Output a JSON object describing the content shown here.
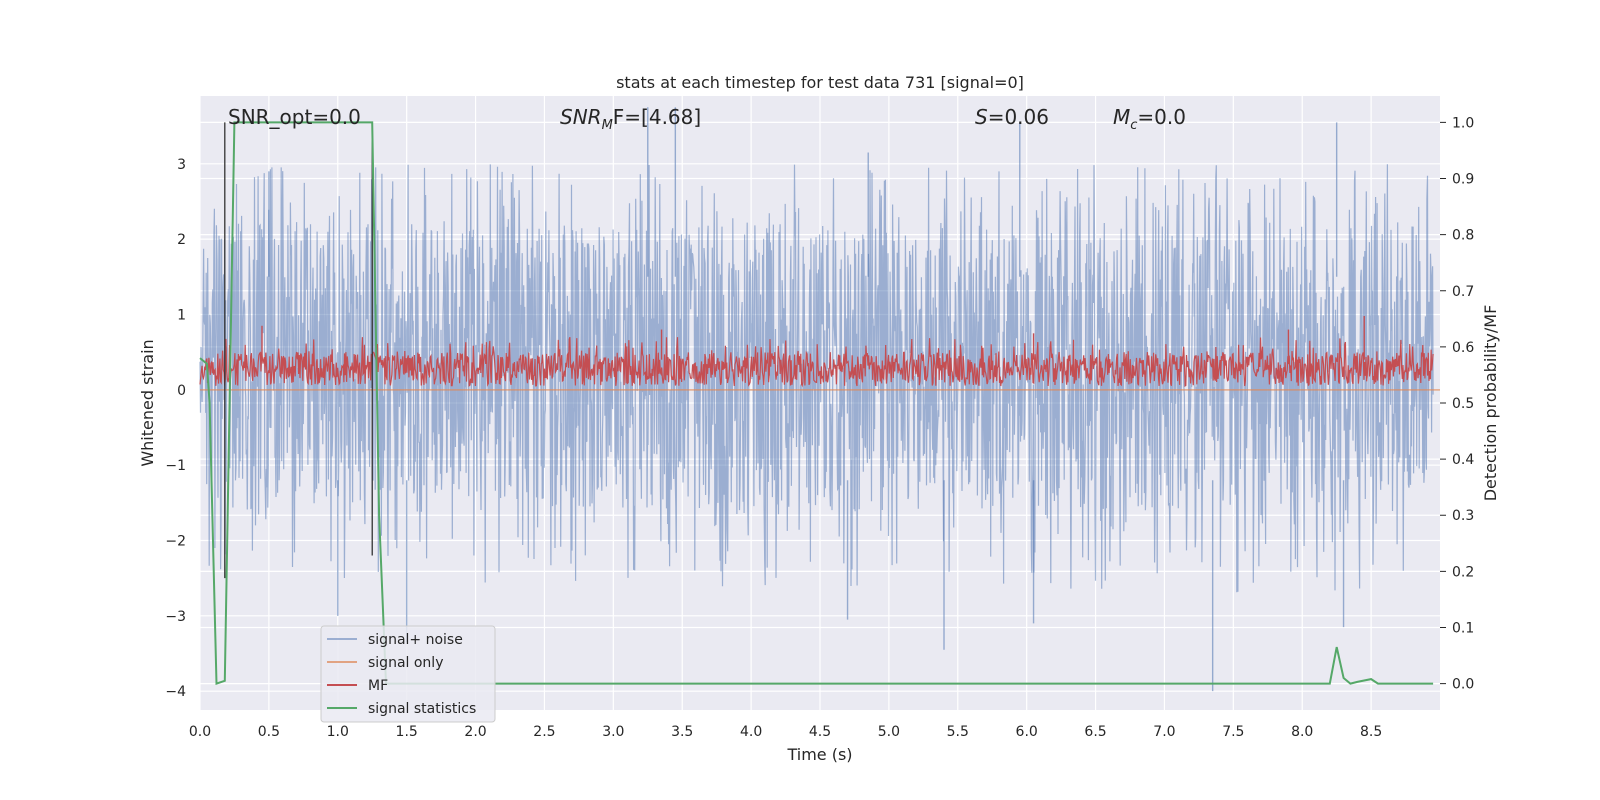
{
  "chart_data": {
    "type": "line",
    "title": "stats at each timestep for test data 731 [signal=0]",
    "xlabel": "Time (s)",
    "ylabel_left": "Whitened strain",
    "ylabel_right": "Detection probability/MF",
    "xlim": [
      0.0,
      9.0
    ],
    "ylim_left": [
      -4.25,
      3.9
    ],
    "ylim_right": [
      -0.047,
      1.047
    ],
    "x_ticks": [
      "0.0",
      "0.5",
      "1.0",
      "1.5",
      "2.0",
      "2.5",
      "3.0",
      "3.5",
      "4.0",
      "4.5",
      "5.0",
      "5.5",
      "6.0",
      "6.5",
      "7.0",
      "7.5",
      "8.0",
      "8.5"
    ],
    "y_ticks_left": [
      "3",
      "2",
      "1",
      "0",
      "−1",
      "−2",
      "−3",
      "−4"
    ],
    "y_ticks_right": [
      "1.0",
      "0.9",
      "0.8",
      "0.7",
      "0.6",
      "0.5",
      "0.4",
      "0.3",
      "0.2",
      "0.1",
      "0.0"
    ],
    "grid": true,
    "legend_position": "lower-left",
    "annotations": [
      {
        "label": "SNR_opt=0.0"
      },
      {
        "label_main": "SNR",
        "label_sub": "M",
        "label_rest": "F=[4.68]"
      },
      {
        "label_main": "S",
        "label_rest": "=0.06"
      },
      {
        "label_main": "M",
        "label_sub": "c",
        "label_rest": "=0.0"
      }
    ],
    "series": [
      {
        "name": "signal+ noise",
        "color": "#4c72b0",
        "axis": "left",
        "kind": "noise",
        "envelope": [
          -1.6,
          2.2
        ],
        "peaks": [
          {
            "x": 0.5,
            "y": 2.9
          },
          {
            "x": 3.25,
            "y": 3.75
          },
          {
            "x": 3.45,
            "y": 3.75
          },
          {
            "x": 5.95,
            "y": 3.55
          },
          {
            "x": 8.25,
            "y": 3.55
          },
          {
            "x": 4.85,
            "y": 3.15
          },
          {
            "x": 1.0,
            "y": -3.0
          },
          {
            "x": 4.7,
            "y": -3.05
          },
          {
            "x": 5.4,
            "y": -3.45
          },
          {
            "x": 6.05,
            "y": -3.1
          },
          {
            "x": 7.35,
            "y": -4.0
          },
          {
            "x": 8.3,
            "y": -3.15
          },
          {
            "x": 1.5,
            "y": -3.35
          }
        ]
      },
      {
        "name": "signal only",
        "color": "#dd8452",
        "axis": "left",
        "x": [
          0.0,
          9.0
        ],
        "y": [
          0.0,
          0.0
        ]
      },
      {
        "name": "MF",
        "color": "#c44e52",
        "axis": "left",
        "kind": "noise",
        "envelope": [
          0.05,
          0.5
        ],
        "peaks": [
          {
            "x": 0.45,
            "y": 0.85
          },
          {
            "x": 3.35,
            "y": 0.8
          },
          {
            "x": 6.05,
            "y": 0.75
          },
          {
            "x": 7.9,
            "y": 0.8
          },
          {
            "x": 8.45,
            "y": 0.98
          }
        ]
      },
      {
        "name": "signal statistics",
        "color": "#55a868",
        "axis": "right",
        "x": [
          0.0,
          0.05,
          0.07,
          0.12,
          0.18,
          0.25,
          1.0,
          1.25,
          1.3,
          1.35,
          8.0,
          8.2,
          8.25,
          8.3,
          8.35,
          8.4,
          8.5,
          8.55,
          8.95
        ],
        "y": [
          0.58,
          0.57,
          0.5,
          0.0,
          0.005,
          1.0,
          1.0,
          1.0,
          0.3,
          0.0,
          0.0,
          0.0,
          0.065,
          0.01,
          0.0,
          0.003,
          0.008,
          0.0,
          0.0
        ]
      }
    ],
    "markers": [
      {
        "name": "vline",
        "x": 0.18,
        "y_range": [
          -2.5,
          3.55
        ]
      },
      {
        "name": "vline",
        "x": 1.25,
        "y_range": [
          -2.2,
          3.55
        ]
      }
    ]
  }
}
